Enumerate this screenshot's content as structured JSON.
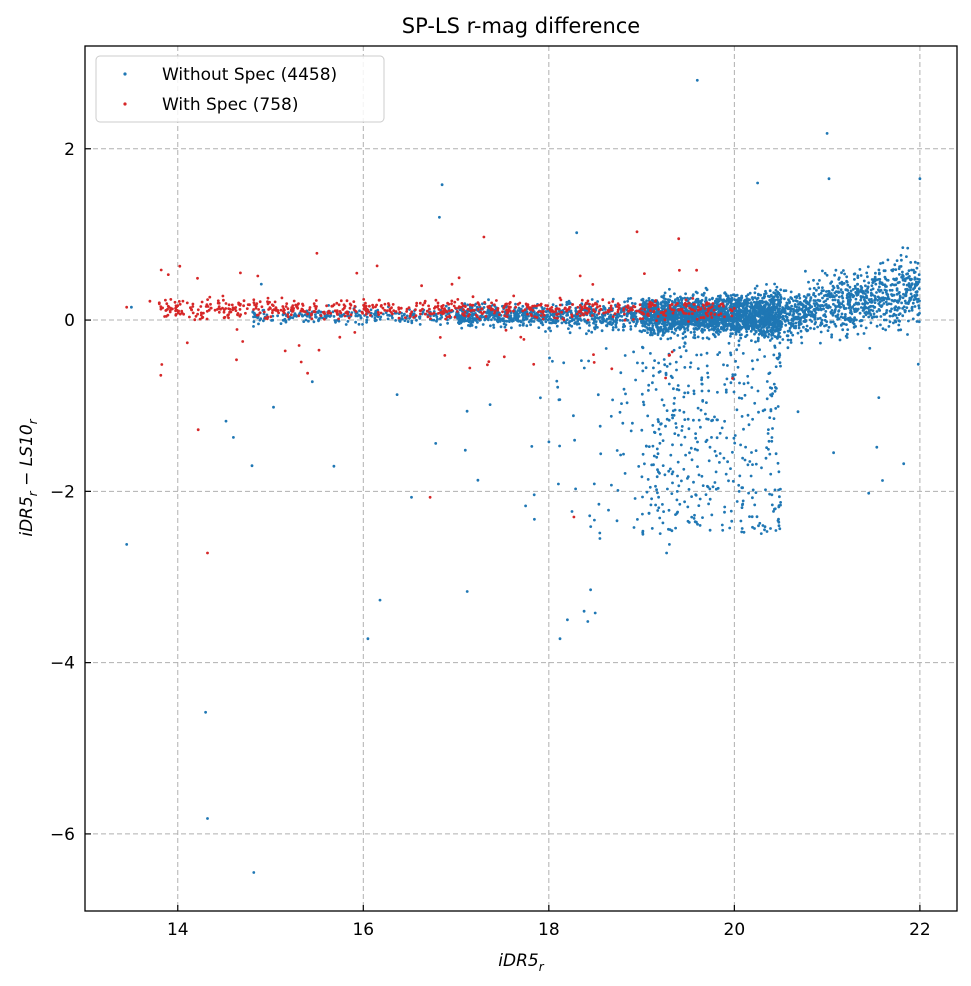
{
  "chart_data": {
    "type": "scatter",
    "title": "SP-LS r-mag difference",
    "xlabel_base": "iDR5",
    "xlabel_sub": "r",
    "ylabel_a_base": "iDR5",
    "ylabel_a_sub": "r",
    "ylabel_minus": " − ",
    "ylabel_b_base": "LS10",
    "ylabel_b_sub": "r",
    "xlim": [
      13.0,
      22.4
    ],
    "ylim": [
      -6.9,
      3.2
    ],
    "xticks": [
      14,
      16,
      18,
      20,
      22
    ],
    "xtick_labels": [
      "14",
      "16",
      "18",
      "20",
      "22"
    ],
    "yticks": [
      2,
      0,
      -2,
      -4,
      -6
    ],
    "ytick_labels": [
      "2",
      "0",
      "−2",
      "−4",
      "−6"
    ],
    "grid": true,
    "legend_position": "top-left",
    "series": [
      {
        "name": "Without Spec (4458)",
        "color": "#1f77b4",
        "count": 4458,
        "outliers": [
          [
            13.45,
            -2.62
          ],
          [
            14.3,
            -4.58
          ],
          [
            14.32,
            -5.82
          ],
          [
            14.82,
            -6.45
          ],
          [
            16.05,
            -3.72
          ],
          [
            16.18,
            -3.27
          ],
          [
            17.12,
            -3.17
          ],
          [
            18.12,
            -3.72
          ],
          [
            18.2,
            -3.5
          ],
          [
            18.38,
            -3.4
          ],
          [
            18.42,
            -3.52
          ],
          [
            18.45,
            -3.15
          ],
          [
            18.5,
            -3.42
          ],
          [
            14.6,
            -1.37
          ],
          [
            14.52,
            -1.18
          ],
          [
            14.8,
            -1.7
          ],
          [
            15.45,
            -0.72
          ],
          [
            16.52,
            -2.07
          ],
          [
            16.78,
            -1.44
          ],
          [
            17.1,
            -1.52
          ],
          [
            19.6,
            2.8
          ],
          [
            21.0,
            2.18
          ],
          [
            21.02,
            1.65
          ],
          [
            16.85,
            1.58
          ],
          [
            16.82,
            1.2
          ],
          [
            18.3,
            1.02
          ],
          [
            22.0,
            1.65
          ],
          [
            20.25,
            1.6
          ],
          [
            19.27,
            -2.72
          ],
          [
            19.3,
            -2.62
          ],
          [
            19.5,
            -2.35
          ],
          [
            17.75,
            -2.17
          ],
          [
            18.55,
            -2.55
          ],
          [
            13.5,
            0.15
          ],
          [
            14.9,
            0.42
          ]
        ]
      },
      {
        "name": "With Spec (758)",
        "color": "#d62728",
        "count": 758,
        "outliers": [
          [
            13.45,
            0.15
          ],
          [
            13.7,
            0.22
          ],
          [
            14.22,
            -1.28
          ],
          [
            14.32,
            -2.72
          ],
          [
            16.72,
            -2.07
          ],
          [
            18.27,
            -2.3
          ],
          [
            14.7,
            -0.25
          ],
          [
            15.5,
            0.78
          ],
          [
            17.3,
            0.97
          ],
          [
            18.95,
            1.03
          ],
          [
            19.4,
            0.95
          ],
          [
            15.4,
            -0.62
          ]
        ]
      }
    ]
  }
}
